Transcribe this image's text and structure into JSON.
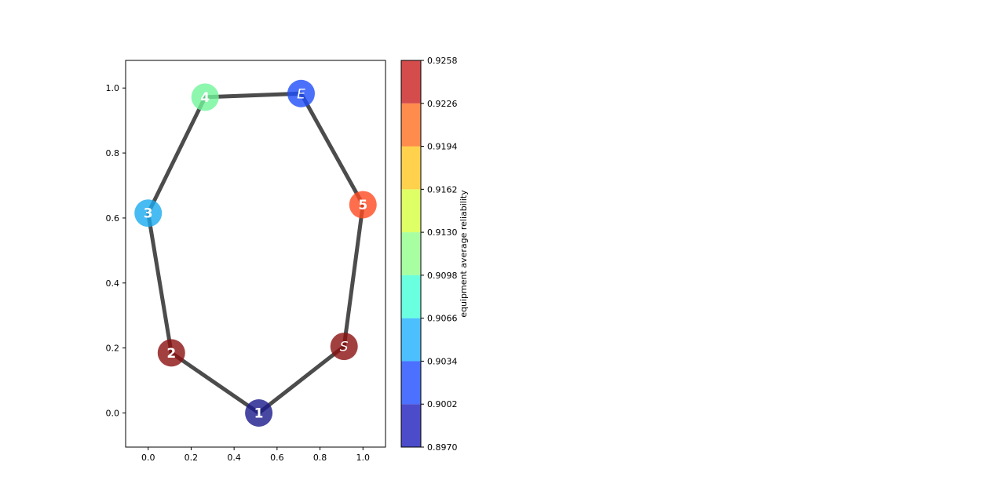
{
  "chart_data": {
    "type": "scatter",
    "title": "",
    "xlabel": "",
    "ylabel": "",
    "xlim": [
      -0.105,
      1.105
    ],
    "ylim": [
      -0.105,
      1.085
    ],
    "xticks": [
      "0.0",
      "0.2",
      "0.4",
      "0.6",
      "0.8",
      "1.0"
    ],
    "yticks": [
      "0.0",
      "0.2",
      "0.4",
      "0.6",
      "0.8",
      "1.0"
    ],
    "grid": false,
    "nodes": [
      {
        "label": "1",
        "x": 0.515,
        "y": 0.0,
        "color": "#1a1a8c",
        "italic": false
      },
      {
        "label": "S",
        "x": 0.912,
        "y": 0.205,
        "color": "#8b1010",
        "italic": true
      },
      {
        "label": "5",
        "x": 1.0,
        "y": 0.641,
        "color": "#ff4a1f",
        "italic": false
      },
      {
        "label": "E",
        "x": 0.712,
        "y": 0.983,
        "color": "#1e4dfa",
        "italic": true
      },
      {
        "label": "4",
        "x": 0.265,
        "y": 0.972,
        "color": "#70f59a",
        "italic": false
      },
      {
        "label": "3",
        "x": 0.0,
        "y": 0.615,
        "color": "#1aaaf0",
        "italic": false
      },
      {
        "label": "2",
        "x": 0.108,
        "y": 0.185,
        "color": "#8b1010",
        "italic": false
      }
    ],
    "edges": [
      [
        0,
        1
      ],
      [
        1,
        2
      ],
      [
        2,
        3
      ],
      [
        3,
        4
      ],
      [
        4,
        5
      ],
      [
        5,
        6
      ],
      [
        6,
        0
      ]
    ],
    "colorbar": {
      "label": "equipment average reliability",
      "min": 0.897,
      "max": 0.9258,
      "ticks": [
        "0.8970",
        "0.9002",
        "0.9034",
        "0.9066",
        "0.9098",
        "0.9130",
        "0.9162",
        "0.9194",
        "0.9226",
        "0.9258"
      ],
      "colors": [
        "#0000b3",
        "#0033ff",
        "#00a4ff",
        "#2bffd2",
        "#83ff7a",
        "#d2ff25",
        "#ffbd00",
        "#ff5a00",
        "#c30000"
      ],
      "alpha": 0.7
    }
  }
}
